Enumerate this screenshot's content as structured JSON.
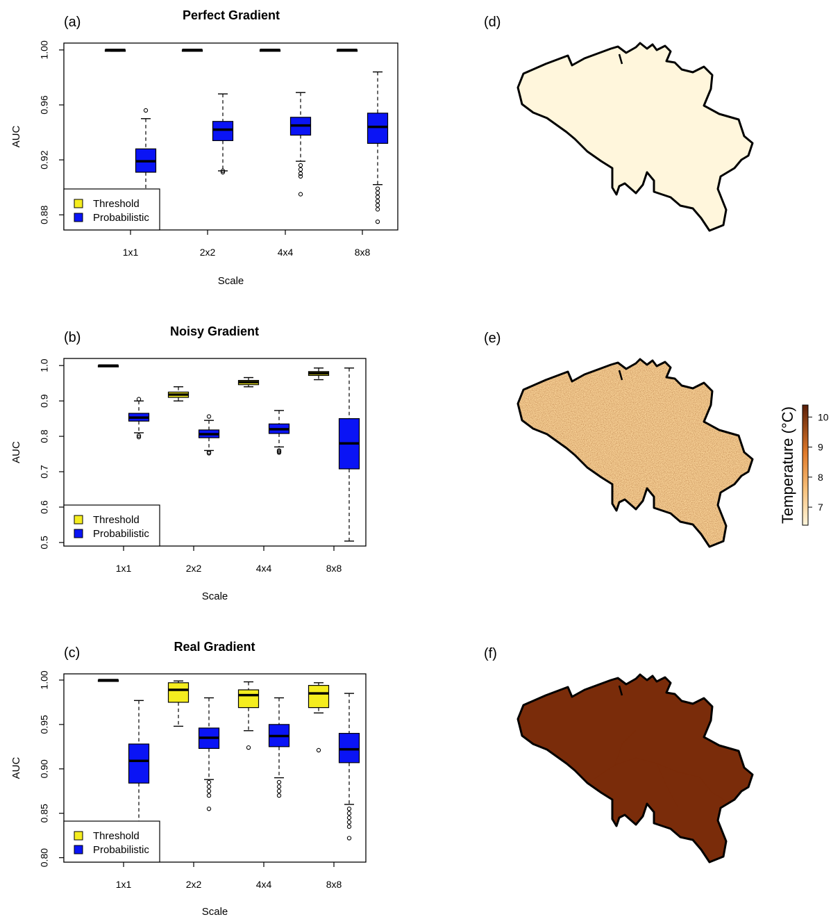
{
  "figure": {
    "colors": {
      "threshold": "#f5ed1f",
      "probabilistic": "#0a14f5",
      "temp_low": "#fff6dc",
      "temp_mid": "#e88a2d",
      "temp_high": "#5a1e08"
    },
    "legend": {
      "threshold": "Threshold",
      "probabilistic": "Probabilistic"
    },
    "maps": [
      {
        "label": "(d)",
        "style": "gradient"
      },
      {
        "label": "(e)",
        "style": "noisy"
      },
      {
        "label": "(f)",
        "style": "real"
      }
    ],
    "colorbar": {
      "title": "Temperature (°C)",
      "ticks": [
        "7",
        "8",
        "9",
        "10"
      ],
      "range": [
        6.4,
        10.4
      ]
    }
  },
  "chart_data": [
    {
      "type": "boxplot",
      "label": "(a)",
      "title": "Perfect Gradient",
      "xlabel": "Scale",
      "ylabel": "AUC",
      "categories": [
        "1x1",
        "2x2",
        "4x4",
        "8x8"
      ],
      "ylim": [
        0.869,
        1.005
      ],
      "yticks": [
        0.88,
        0.92,
        0.96,
        1.0
      ],
      "ytick_labels": [
        "0.88",
        "0.92",
        "0.96",
        "1.00"
      ],
      "legend_position": "bottom-left",
      "series": [
        {
          "name": "Threshold",
          "boxes": [
            {
              "wlo": 0.999,
              "q1": 0.9995,
              "med": 1.0,
              "q3": 1.0,
              "whi": 1.0,
              "outliers": []
            },
            {
              "wlo": 1.0,
              "q1": 1.0,
              "med": 1.0,
              "q3": 1.0,
              "whi": 1.0,
              "outliers": []
            },
            {
              "wlo": 1.0,
              "q1": 1.0,
              "med": 1.0,
              "q3": 1.0,
              "whi": 1.0,
              "outliers": []
            },
            {
              "wlo": 1.0,
              "q1": 1.0,
              "med": 1.0,
              "q3": 1.0,
              "whi": 1.0,
              "outliers": []
            }
          ]
        },
        {
          "name": "Probabilistic",
          "boxes": [
            {
              "wlo": 0.898,
              "q1": 0.911,
              "med": 0.919,
              "q3": 0.928,
              "whi": 0.95,
              "outliers": [
                0.956
              ]
            },
            {
              "wlo": 0.912,
              "q1": 0.934,
              "med": 0.942,
              "q3": 0.948,
              "whi": 0.968,
              "outliers": [
                0.911,
                0.912
              ]
            },
            {
              "wlo": 0.919,
              "q1": 0.938,
              "med": 0.945,
              "q3": 0.951,
              "whi": 0.969,
              "outliers": [
                0.916,
                0.913,
                0.91,
                0.908,
                0.895
              ]
            },
            {
              "wlo": 0.902,
              "q1": 0.932,
              "med": 0.944,
              "q3": 0.954,
              "whi": 0.984,
              "outliers": [
                0.899,
                0.896,
                0.893,
                0.89,
                0.887,
                0.884,
                0.875
              ]
            }
          ]
        }
      ]
    },
    {
      "type": "boxplot",
      "label": "(b)",
      "title": "Noisy Gradient",
      "xlabel": "Scale",
      "ylabel": "AUC",
      "categories": [
        "1x1",
        "2x2",
        "4x4",
        "8x8"
      ],
      "ylim": [
        0.49,
        1.02
      ],
      "yticks": [
        0.5,
        0.6,
        0.7,
        0.8,
        0.9,
        1.0
      ],
      "ytick_labels": [
        "0.5",
        "0.6",
        "0.7",
        "0.8",
        "0.9",
        "1.0"
      ],
      "legend_position": "bottom-left",
      "series": [
        {
          "name": "Threshold",
          "boxes": [
            {
              "wlo": 0.998,
              "q1": 1.0,
              "med": 1.0,
              "q3": 1.0,
              "whi": 1.0,
              "outliers": []
            },
            {
              "wlo": 0.9,
              "q1": 0.91,
              "med": 0.918,
              "q3": 0.925,
              "whi": 0.94,
              "outliers": []
            },
            {
              "wlo": 0.94,
              "q1": 0.946,
              "med": 0.953,
              "q3": 0.958,
              "whi": 0.966,
              "outliers": []
            },
            {
              "wlo": 0.96,
              "q1": 0.972,
              "med": 0.978,
              "q3": 0.983,
              "whi": 0.993,
              "outliers": []
            }
          ]
        },
        {
          "name": "Probabilistic",
          "boxes": [
            {
              "wlo": 0.81,
              "q1": 0.843,
              "med": 0.853,
              "q3": 0.865,
              "whi": 0.9,
              "outliers": [
                0.905,
                0.802,
                0.798
              ]
            },
            {
              "wlo": 0.76,
              "q1": 0.796,
              "med": 0.806,
              "q3": 0.818,
              "whi": 0.845,
              "outliers": [
                0.856,
                0.755,
                0.752
              ]
            },
            {
              "wlo": 0.77,
              "q1": 0.808,
              "med": 0.82,
              "q3": 0.835,
              "whi": 0.873,
              "outliers": [
                0.76,
                0.757,
                0.754
              ]
            },
            {
              "wlo": 0.504,
              "q1": 0.708,
              "med": 0.78,
              "q3": 0.85,
              "whi": 0.993,
              "outliers": []
            }
          ]
        }
      ]
    },
    {
      "type": "boxplot",
      "label": "(c)",
      "title": "Real Gradient",
      "xlabel": "Scale",
      "ylabel": "AUC",
      "categories": [
        "1x1",
        "2x2",
        "4x4",
        "8x8"
      ],
      "ylim": [
        0.795,
        1.007
      ],
      "yticks": [
        0.8,
        0.85,
        0.9,
        0.95,
        1.0
      ],
      "ytick_labels": [
        "0.80",
        "0.85",
        "0.90",
        "0.95",
        "1.00"
      ],
      "legend_position": "bottom-left",
      "series": [
        {
          "name": "Threshold",
          "boxes": [
            {
              "wlo": 0.999,
              "q1": 1.0,
              "med": 1.0,
              "q3": 1.0,
              "whi": 1.0,
              "outliers": []
            },
            {
              "wlo": 0.948,
              "q1": 0.975,
              "med": 0.989,
              "q3": 0.997,
              "whi": 0.999,
              "outliers": []
            },
            {
              "wlo": 0.943,
              "q1": 0.969,
              "med": 0.983,
              "q3": 0.989,
              "whi": 0.998,
              "outliers": [
                0.924
              ]
            },
            {
              "wlo": 0.963,
              "q1": 0.969,
              "med": 0.985,
              "q3": 0.994,
              "whi": 0.997,
              "outliers": [
                0.921
              ]
            }
          ]
        },
        {
          "name": "Probabilistic",
          "boxes": [
            {
              "wlo": 0.818,
              "q1": 0.884,
              "med": 0.909,
              "q3": 0.928,
              "whi": 0.977,
              "outliers": []
            },
            {
              "wlo": 0.888,
              "q1": 0.923,
              "med": 0.935,
              "q3": 0.946,
              "whi": 0.98,
              "outliers": [
                0.885,
                0.88,
                0.875,
                0.87,
                0.855
              ]
            },
            {
              "wlo": 0.89,
              "q1": 0.925,
              "med": 0.937,
              "q3": 0.95,
              "whi": 0.98,
              "outliers": [
                0.885,
                0.88,
                0.875,
                0.87
              ]
            },
            {
              "wlo": 0.86,
              "q1": 0.907,
              "med": 0.922,
              "q3": 0.94,
              "whi": 0.985,
              "outliers": [
                0.855,
                0.85,
                0.845,
                0.84,
                0.835,
                0.822
              ]
            }
          ]
        }
      ]
    }
  ]
}
